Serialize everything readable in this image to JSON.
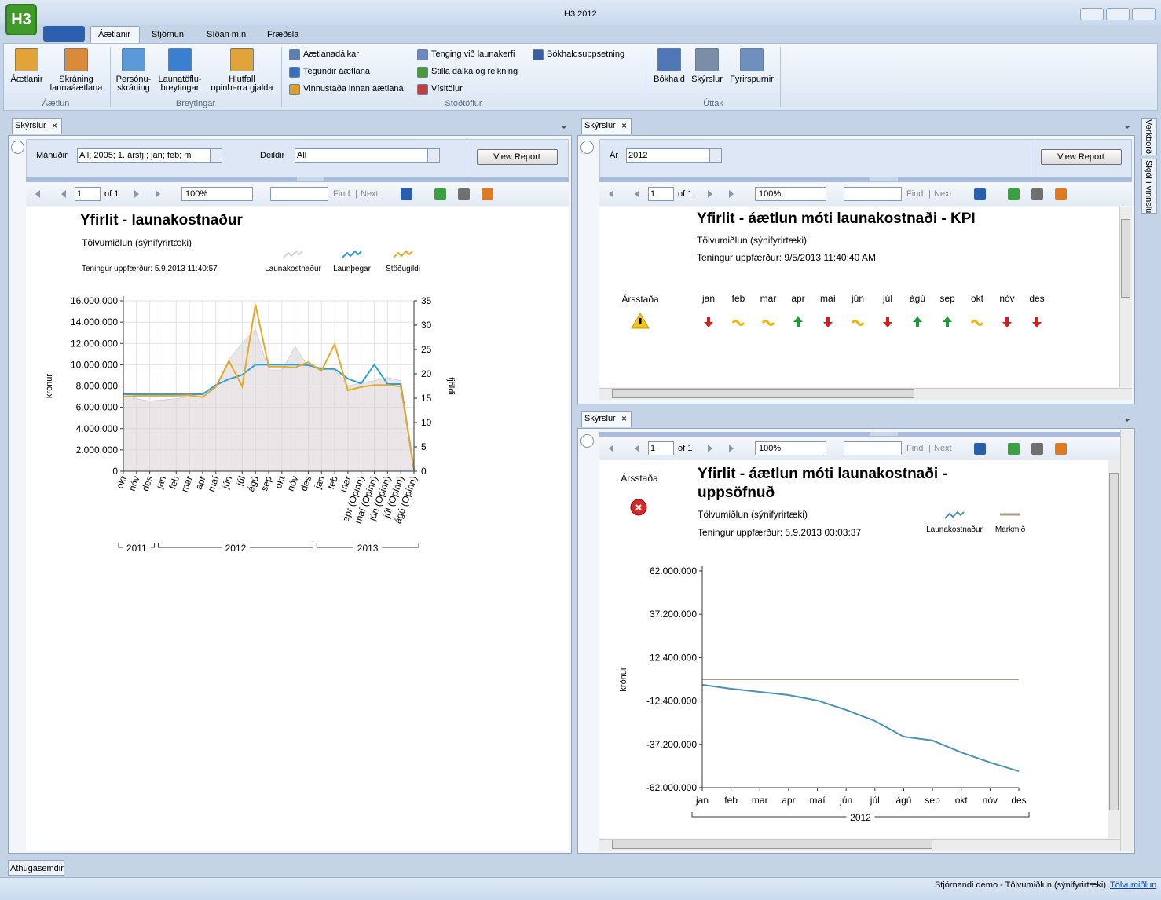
{
  "window": {
    "title": "H3 2012",
    "logo": "H3"
  },
  "ribbon": {
    "tabs": [
      "Áætlanir",
      "Stjórnun",
      "Síðan mín",
      "Fræðsla"
    ],
    "groups": [
      {
        "label": "Áætlun",
        "buttons": [
          [
            "Áætlanir"
          ],
          [
            "Skráning",
            "launaáætlana"
          ]
        ]
      },
      {
        "label": "Breytingar",
        "buttons": [
          [
            "Persónu-",
            "skráning"
          ],
          [
            "Launatöflu-",
            "breytingar"
          ],
          [
            "Hlutfall",
            "opinberra gjalda"
          ]
        ]
      },
      {
        "label": "Stoðtöflur",
        "buttons": [
          [
            "Áætlanadálkar"
          ],
          [
            "Tegundir áætlana"
          ],
          [
            "Vinnustaða innan áætlana"
          ],
          [
            "Tenging við launakerfi"
          ],
          [
            "Stilla dálka og reikning"
          ],
          [
            "Vísitölur"
          ],
          [
            "Bókhaldsuppsetning"
          ]
        ]
      },
      {
        "label": "Úttak",
        "buttons": [
          [
            "Bókhald"
          ],
          [
            "Skýrslur"
          ],
          [
            "Fyrirspurnir"
          ]
        ]
      }
    ]
  },
  "side_tabs": [
    "Verkborð",
    "Skjöl í vinnslu"
  ],
  "bottom_tab": "Athugasemdir",
  "status": {
    "text": "Stjórnandi demo - Tölvumiðlun (sýnifyrirtæki)",
    "link": "Tölvumiðlun"
  },
  "panels": [
    {
      "tab": "Skýrslur",
      "parameters": [
        {
          "label": "Mánuðir",
          "value": "All; 2005; 1. ársfj.; jan; feb; m"
        },
        {
          "label": "Deildir",
          "value": "All"
        }
      ],
      "button": "View Report",
      "toolbar": {
        "page": "1",
        "of": "of 1",
        "zoom": "100%",
        "find": "Find",
        "next": "Next"
      },
      "report": {
        "title": "Yfirlit - launakostnaður",
        "subtitle": "Tölvumiðlun (sýnifyrirtæki)",
        "updated": "Teningur uppfærður: 5.9.2013 11:40:57",
        "chart": {
          "type": "line",
          "y_label": "krónur",
          "y2_label": "fjöldi",
          "grid": true,
          "groups": [
            {
              "label": "2011",
              "categories": [
                "okt",
                "nóv",
                "des"
              ]
            },
            {
              "label": "2012",
              "categories": [
                "jan",
                "feb",
                "mar",
                "apr",
                "maí",
                "jún",
                "júl",
                "ágú",
                "sep",
                "okt",
                "nóv",
                "des"
              ]
            },
            {
              "label": "2013",
              "categories": [
                "jan",
                "feb",
                "mar",
                "apr (Opinn)",
                "maí (Opinn)",
                "jún (Opinn)",
                "júl (Opinn)",
                "ágú (Opinn)"
              ]
            }
          ],
          "series": [
            {
              "name": "Launakostnaður",
              "color": "#d9d2d6",
              "style": "area",
              "values": [
                7300000,
                6800000,
                6600000,
                6700000,
                6800000,
                7000000,
                7300000,
                8000000,
                10500000,
                12000000,
                13300000,
                9500000,
                9500000,
                11700000,
                9800000,
                9800000,
                9500000,
                8000000,
                8300000,
                8500000,
                8800000,
                8500000,
                500000
              ]
            },
            {
              "name": "Launþegar",
              "color": "#2e9fd9",
              "axis": "y2",
              "values": [
                15.8,
                15.8,
                15.8,
                15.8,
                15.8,
                15.8,
                15.8,
                17.7,
                18.9,
                19.8,
                21.9,
                21.9,
                21.9,
                21.9,
                21.8,
                21,
                21,
                19,
                18,
                21.9,
                17.9,
                17.9,
                0.3
              ]
            },
            {
              "name": "Stöðugildi",
              "color": "#e8a92a",
              "axis": "y2",
              "values": [
                15.3,
                15.5,
                15.5,
                15.5,
                15.5,
                15.6,
                15.2,
                17.3,
                22.6,
                17.4,
                34.2,
                21.5,
                21.5,
                21.3,
                22.4,
                20.6,
                26.1,
                16.6,
                17.3,
                17.7,
                17.7,
                17.4,
                0.6
              ]
            }
          ],
          "ylim": [
            0,
            16000000
          ],
          "yticks": [
            0,
            {
              "value": 2000000,
              "label": "2.000.000"
            },
            {
              "value": 4000000,
              "label": "4.000.000"
            },
            {
              "value": 6000000,
              "label": "6.000.000"
            },
            {
              "value": 8000000,
              "label": "8.000.000"
            },
            {
              "value": 10000000,
              "label": "10.000.000"
            },
            {
              "value": 12000000,
              "label": "12.000.000"
            },
            {
              "value": 14000000,
              "label": "14.000.000"
            },
            {
              "value": 16000000,
              "label": "16.000.000"
            }
          ],
          "y2lim": [
            0,
            35
          ],
          "y2ticks": [
            0,
            5,
            10,
            15,
            20,
            25,
            30,
            35
          ]
        }
      }
    },
    {
      "tab": "Skýrslur",
      "parameters": [
        {
          "label": "Ár",
          "value": "2012"
        }
      ],
      "button": "View Report",
      "toolbar": {
        "page": "1",
        "of": "of 1",
        "zoom": "100%",
        "find": "Find",
        "next": "Next"
      },
      "report": {
        "title": "Yfirlit - áætlun móti launakostnaði - KPI",
        "subtitle": "Tölvumiðlun (sýnifyrirtæki)",
        "updated": "Teningur uppfærður: 9/5/2013 11:40:40 AM",
        "kpi": {
          "label": "Ársstaða",
          "status": "warning",
          "months": [
            "jan",
            "feb",
            "mar",
            "apr",
            "maí",
            "jún",
            "júl",
            "ágú",
            "sep",
            "okt",
            "nóv",
            "des"
          ],
          "trend": [
            "down",
            "flat",
            "flat",
            "up",
            "down",
            "flat",
            "down",
            "up",
            "up",
            "flat",
            "down",
            "down"
          ]
        }
      }
    },
    {
      "tab": "Skýrslur",
      "toolbar": {
        "page": "1",
        "of": "of 1",
        "zoom": "100%",
        "find": "Find",
        "next": "Next"
      },
      "report": {
        "title": "Yfirlit - áætlun móti launakostnaði - uppsöfnuð",
        "subtitle": "Tölvumiðlun (sýnifyrirtæki)",
        "updated": "Teningur uppfærður: 5.9.2013 03:03:37",
        "kpi": {
          "label": "Ársstaða",
          "status": "error"
        },
        "chart": {
          "type": "line",
          "y_label": "krónur",
          "grid": false,
          "groups": [
            {
              "label": "2012",
              "categories": [
                "jan",
                "feb",
                "mar",
                "apr",
                "maí",
                "jún",
                "júl",
                "ágú",
                "sep",
                "okt",
                "nóv",
                "des"
              ]
            }
          ],
          "series": [
            {
              "name": "Launakostnaður",
              "color": "#4a90b8",
              "values": [
                -3100000,
                -5400000,
                -7200000,
                -9000000,
                -12100000,
                -17500000,
                -23800000,
                -32800000,
                -35000000,
                -41800000,
                -47600000,
                -52600000
              ]
            },
            {
              "name": "Markmið",
              "color": "#a89a82",
              "values": [
                0,
                0,
                0,
                0,
                0,
                0,
                0,
                0,
                0,
                0,
                0,
                0
              ]
            }
          ],
          "ylim": [
            -62000000,
            62000000
          ],
          "yticks": [
            {
              "value": -62000000,
              "label": "-62.000.000"
            },
            {
              "value": -37200000,
              "label": "-37.200.000"
            },
            {
              "value": -12400000,
              "label": "-12.400.000"
            },
            {
              "value": 12400000,
              "label": "12.400.000"
            },
            {
              "value": 37200000,
              "label": "37.200.000"
            },
            {
              "value": 62000000,
              "label": "62.000.000"
            }
          ]
        }
      }
    }
  ]
}
